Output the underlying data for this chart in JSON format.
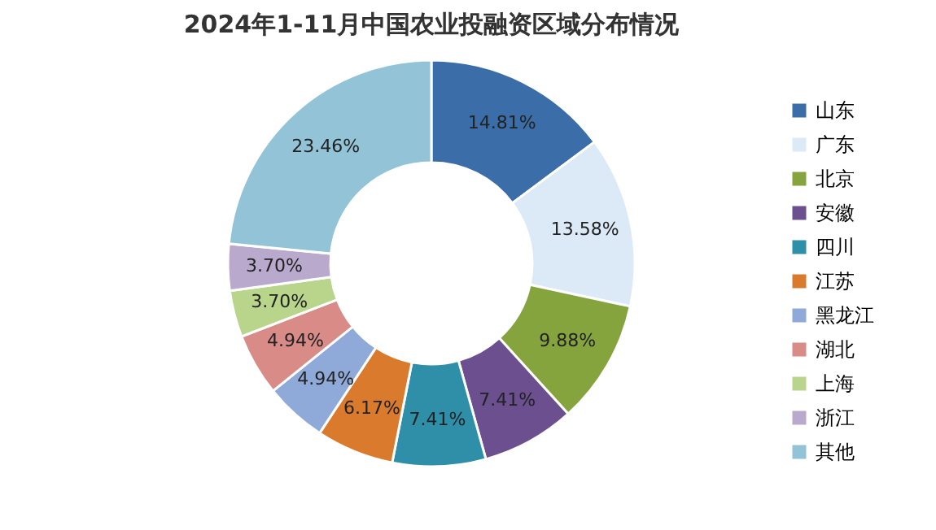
{
  "chart_data": {
    "type": "donut",
    "title": "2024年1-11月中国农业投融资区域分布情况",
    "categories": [
      "山东",
      "广东",
      "北京",
      "安徽",
      "四川",
      "江苏",
      "黑龙江",
      "湖北",
      "上海",
      "浙江",
      "其他"
    ],
    "values": [
      14.81,
      13.58,
      9.88,
      7.41,
      7.41,
      6.17,
      4.94,
      4.94,
      3.7,
      3.7,
      23.46
    ],
    "value_labels": [
      "14.81%",
      "13.58%",
      "9.88%",
      "7.41%",
      "7.41%",
      "6.17%",
      "4.94%",
      "4.94%",
      "3.70%",
      "3.70%",
      "23.46%"
    ],
    "colors": [
      "#3b6ea8",
      "#dce9f7",
      "#86a43e",
      "#6b4f8e",
      "#2f8fa9",
      "#da7a2c",
      "#8fa9d9",
      "#d98b87",
      "#b9d58c",
      "#b9aacd",
      "#93c3d7"
    ],
    "legend": "right"
  }
}
